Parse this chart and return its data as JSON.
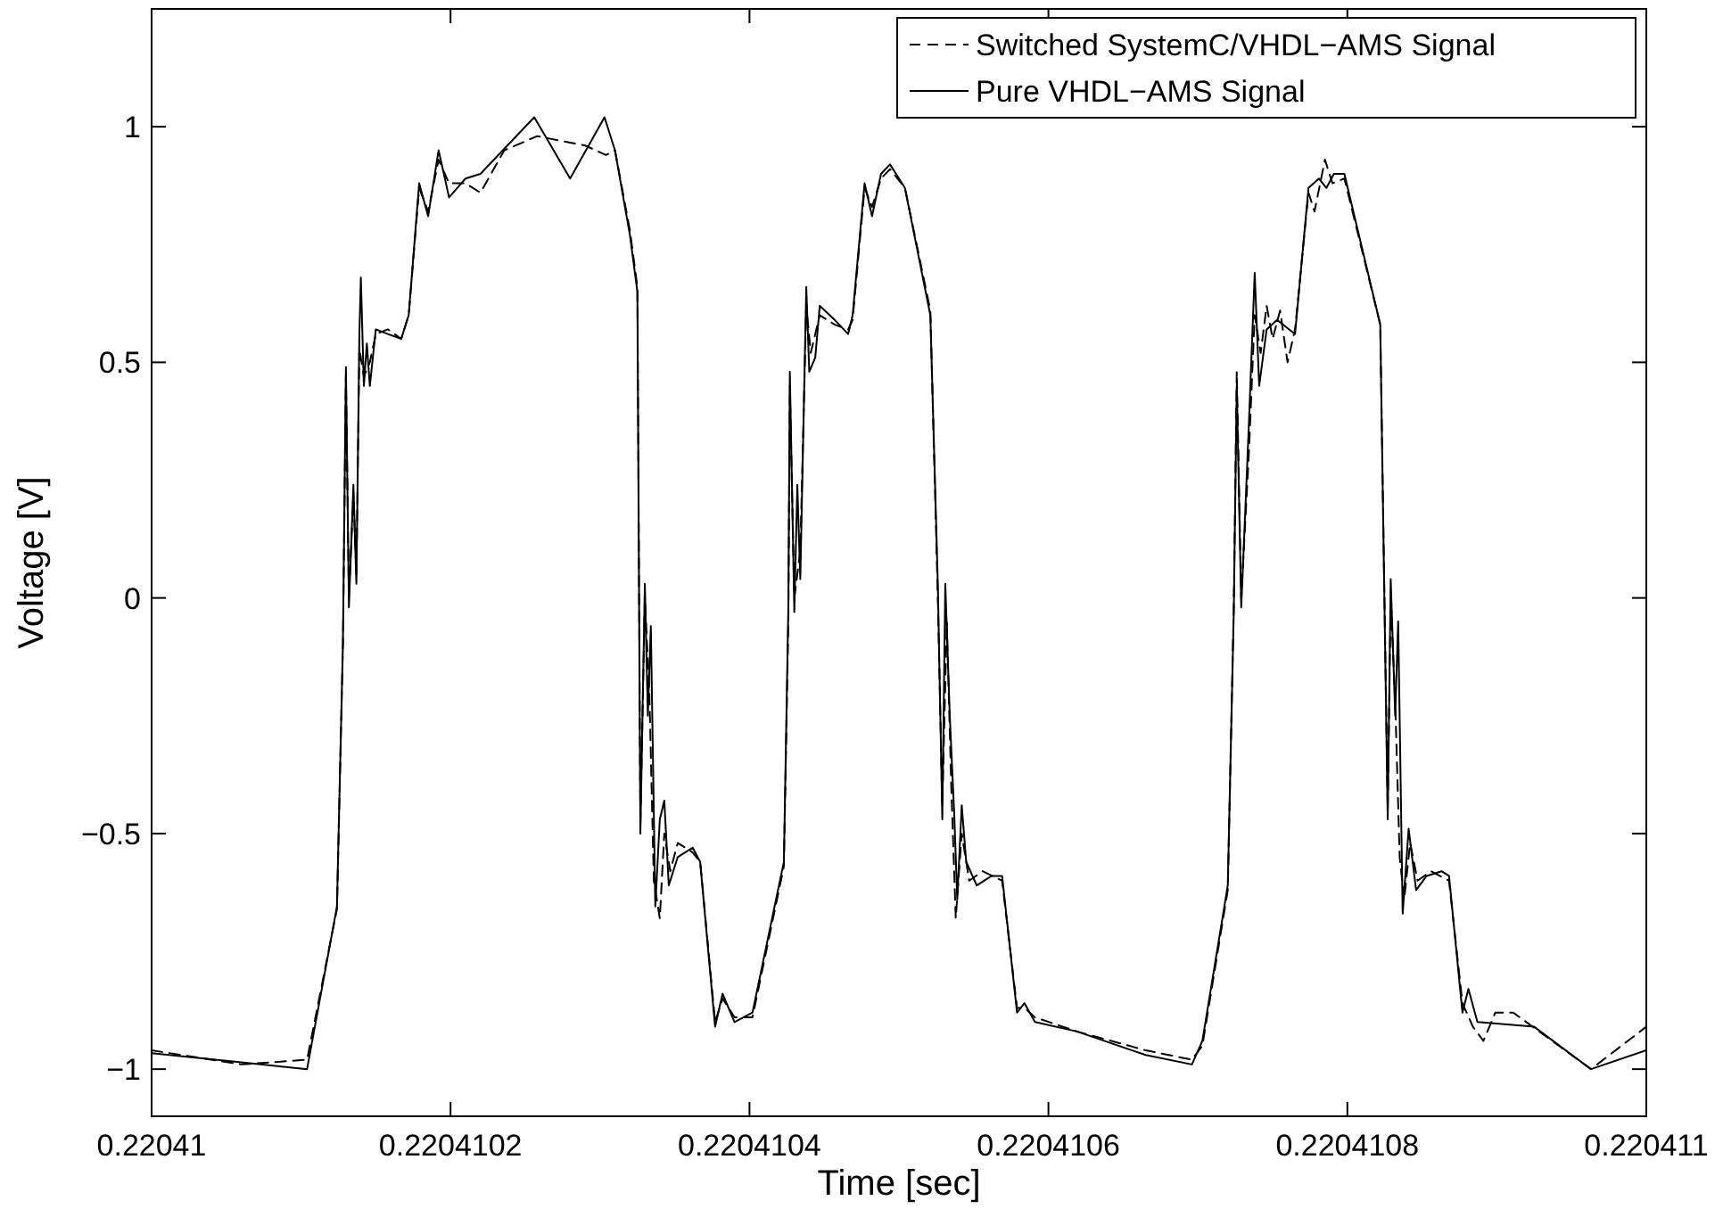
{
  "chart_data": {
    "type": "line",
    "xlabel": "Time [sec]",
    "ylabel": "Voltage [V]",
    "xlim": [
      0.22041,
      0.220411
    ],
    "xticks": [
      0.22041,
      0.2204102,
      0.2204104,
      0.2204106,
      0.2204108,
      0.220411
    ],
    "ylim": [
      -1.1,
      1.25
    ],
    "yticks": [
      {
        "value": -1,
        "label": "−1"
      },
      {
        "value": -0.5,
        "label": "−0.5"
      },
      0,
      0.5,
      1
    ],
    "grid": false,
    "legend": "top right",
    "marker": "none",
    "series": [
      {
        "name": "Switched SystemC/VHDL−AMS Signal",
        "color": "#000000",
        "line_style": "dashed",
        "x": [
          0.22041,
          0.22041006,
          0.220410104,
          0.220410124,
          0.220410128,
          0.22041013,
          0.220410132,
          0.220410135,
          0.220410137,
          0.220410139,
          0.220410142,
          0.220410146,
          0.22041015,
          0.220410158,
          0.220410167,
          0.220410172,
          0.220410179,
          0.220410185,
          0.220410192,
          0.220410199,
          0.22041021,
          0.22041022,
          0.220410236,
          0.220410258,
          0.22041029,
          0.220410304,
          0.22041031,
          0.22041032,
          0.220410325,
          0.220410327,
          0.22041033,
          0.220410333,
          0.220410336,
          0.22041034,
          0.220410343,
          0.220410347,
          0.220410352,
          0.220410362,
          0.220410367,
          0.220410377,
          0.220410382,
          0.22041039,
          0.220410402,
          0.220410423,
          0.220410426,
          0.220410427,
          0.22041043,
          0.220410434,
          0.220410438,
          0.220410441,
          0.220410447,
          0.220410457,
          0.220410466,
          0.220410469,
          0.220410477,
          0.220410482,
          0.220410488,
          0.220410494,
          0.220410504,
          0.220410521,
          0.220410526,
          0.220410529,
          0.220410532,
          0.220410535,
          0.220410538,
          0.220410542,
          0.220410547,
          0.220410556,
          0.220410569,
          0.220410579,
          0.220410584,
          0.220410591,
          0.220410619,
          0.220410665,
          0.220410696,
          0.220410703,
          0.22041072,
          0.220410724,
          0.220410726,
          0.220410729,
          0.220410734,
          0.220410738,
          0.220410742,
          0.220410746,
          0.22041075,
          0.220410755,
          0.22041076,
          0.220410765,
          0.220410774,
          0.220410778,
          0.220410785,
          0.22041079,
          0.220410798,
          0.220410822,
          0.220410827,
          0.220410829,
          0.220410832,
          0.220410835,
          0.220410838,
          0.220410842,
          0.220410847,
          0.220410856,
          0.220410868,
          0.220410877,
          0.220410884,
          0.220410891,
          0.220410899,
          0.220410911,
          0.220410963,
          0.220411
        ],
        "values": [
          -0.96,
          -0.99,
          -0.98,
          -0.66,
          -0.1,
          0.47,
          0.0,
          0.22,
          0.05,
          0.53,
          0.47,
          0.5,
          0.56,
          0.57,
          0.55,
          0.6,
          0.87,
          0.82,
          0.93,
          0.88,
          0.88,
          0.86,
          0.95,
          0.98,
          0.96,
          0.94,
          0.95,
          0.78,
          0.66,
          -0.48,
          0.0,
          -0.2,
          -0.6,
          -0.68,
          -0.5,
          -0.58,
          -0.52,
          -0.54,
          -0.56,
          -0.9,
          -0.85,
          -0.89,
          -0.89,
          -0.57,
          -0.05,
          0.45,
          0.0,
          0.1,
          0.62,
          0.52,
          0.6,
          0.58,
          0.57,
          0.59,
          0.87,
          0.83,
          0.89,
          0.91,
          0.87,
          0.61,
          0.0,
          -0.44,
          -0.05,
          -0.4,
          -0.68,
          -0.5,
          -0.6,
          -0.58,
          -0.6,
          -0.87,
          -0.87,
          -0.89,
          -0.92,
          -0.96,
          -0.98,
          -0.95,
          -0.62,
          -0.02,
          0.48,
          0.0,
          0.3,
          0.6,
          0.52,
          0.62,
          0.55,
          0.61,
          0.5,
          0.57,
          0.86,
          0.82,
          0.93,
          0.88,
          0.89,
          0.58,
          -0.45,
          0.0,
          -0.22,
          -0.55,
          -0.64,
          -0.52,
          -0.6,
          -0.58,
          -0.6,
          -0.86,
          -0.91,
          -0.94,
          -0.88,
          -0.88,
          -1.0,
          -0.91
        ]
      },
      {
        "name": "Pure VHDL−AMS Signal",
        "color": "#000000",
        "line_style": "solid",
        "x": [
          0.22041,
          0.220410104,
          0.220410124,
          0.220410128,
          0.22041013,
          0.220410132,
          0.220410135,
          0.220410137,
          0.220410139,
          0.22041014,
          0.220410142,
          0.220410144,
          0.220410146,
          0.22041015,
          0.220410158,
          0.220410167,
          0.220410172,
          0.220410179,
          0.220410185,
          0.220410192,
          0.220410199,
          0.22041021,
          0.22041022,
          0.220410256,
          0.22041028,
          0.220410303,
          0.22041031,
          0.22041032,
          0.220410325,
          0.220410327,
          0.22041033,
          0.220410332,
          0.220410334,
          0.220410337,
          0.22041034,
          0.220410343,
          0.220410346,
          0.220410352,
          0.220410362,
          0.220410367,
          0.220410377,
          0.220410382,
          0.22041039,
          0.220410402,
          0.220410423,
          0.220410426,
          0.220410427,
          0.22041043,
          0.220410432,
          0.220410434,
          0.220410438,
          0.22041044,
          0.220410444,
          0.220410447,
          0.220410457,
          0.220410466,
          0.220410469,
          0.220410477,
          0.220410482,
          0.220410488,
          0.220410494,
          0.220410504,
          0.220410521,
          0.220410526,
          0.220410529,
          0.220410531,
          0.220410534,
          0.220410537,
          0.220410539,
          0.220410542,
          0.220410545,
          0.220410552,
          0.220410562,
          0.220410569,
          0.220410579,
          0.220410584,
          0.220410591,
          0.220410619,
          0.220410665,
          0.220410696,
          0.220410703,
          0.22041072,
          0.220410724,
          0.220410726,
          0.220410729,
          0.220410734,
          0.220410738,
          0.220410741,
          0.220410746,
          0.220410753,
          0.220410765,
          0.220410774,
          0.220410781,
          0.220410786,
          0.220410791,
          0.220410798,
          0.220410822,
          0.220410827,
          0.220410829,
          0.220410832,
          0.220410834,
          0.220410837,
          0.220410841,
          0.220410846,
          0.220410853,
          0.220410863,
          0.220410868,
          0.220410877,
          0.220410881,
          0.220410887,
          0.220410925,
          0.220410963,
          0.220411
        ],
        "values": [
          -0.966,
          -1.0,
          -0.655,
          -0.095,
          0.49,
          -0.02,
          0.24,
          0.03,
          0.56,
          0.68,
          0.45,
          0.54,
          0.45,
          0.57,
          0.56,
          0.55,
          0.6,
          0.88,
          0.81,
          0.95,
          0.85,
          0.89,
          0.9,
          1.02,
          0.89,
          1.02,
          0.95,
          0.77,
          0.65,
          -0.5,
          0.03,
          -0.25,
          -0.06,
          -0.655,
          -0.47,
          -0.43,
          -0.61,
          -0.55,
          -0.53,
          -0.56,
          -0.91,
          -0.84,
          -0.9,
          -0.88,
          -0.56,
          -0.02,
          0.48,
          -0.03,
          0.24,
          0.04,
          0.66,
          0.48,
          0.51,
          0.62,
          0.59,
          0.56,
          0.6,
          0.88,
          0.81,
          0.9,
          0.92,
          0.87,
          0.6,
          0.03,
          -0.47,
          0.03,
          -0.25,
          -0.46,
          -0.64,
          -0.44,
          -0.56,
          -0.61,
          -0.59,
          -0.59,
          -0.88,
          -0.86,
          -0.9,
          -0.92,
          -0.97,
          -0.99,
          -0.94,
          -0.61,
          -0.03,
          0.45,
          -0.02,
          0.36,
          0.69,
          0.45,
          0.57,
          0.59,
          0.56,
          0.87,
          0.89,
          0.87,
          0.9,
          0.9,
          0.58,
          -0.47,
          0.04,
          -0.25,
          -0.05,
          -0.67,
          -0.49,
          -0.62,
          -0.59,
          -0.58,
          -0.59,
          -0.88,
          -0.83,
          -0.9,
          -0.91,
          -1.0,
          -0.96
        ]
      }
    ]
  }
}
